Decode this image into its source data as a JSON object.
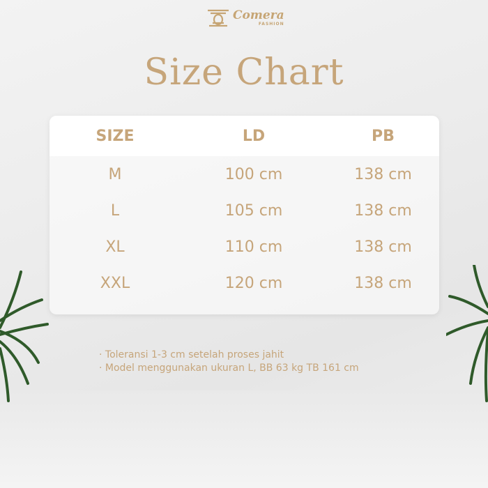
{
  "brand": {
    "name": "Comera",
    "sub": "FASHION"
  },
  "title": "Size Chart",
  "table": {
    "headers": [
      "SIZE",
      "LD",
      "PB"
    ],
    "rows": [
      [
        "M",
        "100 cm",
        "138 cm"
      ],
      [
        "L",
        "105 cm",
        "138 cm"
      ],
      [
        "XL",
        "110 cm",
        "138 cm"
      ],
      [
        "XXL",
        "120 cm",
        "138 cm"
      ]
    ]
  },
  "notes": [
    "· Toleransi 1-3 cm setelah proses jahit",
    "· Model menggunakan ukuran L, BB 63 kg TB 161 cm"
  ],
  "colors": {
    "accent": "#c6a57a"
  }
}
